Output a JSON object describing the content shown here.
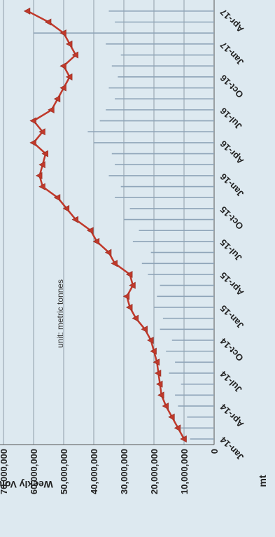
{
  "chart_data": {
    "type": "line",
    "rotation": "rotated 90 degrees counter-clockwise",
    "ylabel": "Weekly Volume",
    "unit_label": "mt",
    "annotation": "unit: metric tonnes",
    "ylim": [
      0,
      70000000
    ],
    "y_ticks": [
      "70,000,000",
      "60,000,000",
      "50,000,000",
      "40,000,000",
      "30,000,000",
      "20,000,000",
      "10,000,000",
      "0"
    ],
    "x_ticks": [
      "Jan-14",
      "Apr-14",
      "Jul-14",
      "Oct-14",
      "Jan-15",
      "Apr-15",
      "Jul-15",
      "Oct-15",
      "Jan-16",
      "Apr-16",
      "Jul-16",
      "Oct-16",
      "Jan-17",
      "Apr-17"
    ],
    "grid": true,
    "series": [
      {
        "style": "line with triangle markers",
        "color": "#c0392b",
        "x": [
          "Jan-14",
          "Feb-14",
          "Mar-14",
          "Apr-14",
          "May-14",
          "Jun-14",
          "Jul-14",
          "Aug-14",
          "Sep-14",
          "Oct-14",
          "Nov-14",
          "Dec-14",
          "Jan-15",
          "Feb-15",
          "Mar-15",
          "Apr-15",
          "May-15",
          "Jun-15",
          "Jul-15",
          "Aug-15",
          "Sep-15",
          "Oct-15",
          "Nov-15",
          "Dec-15",
          "Jan-16",
          "Feb-16",
          "Mar-16",
          "Apr-16",
          "May-16",
          "Jun-16",
          "Jul-16",
          "Aug-16",
          "Sep-16",
          "Oct-16",
          "Nov-16",
          "Dec-16",
          "Jan-17",
          "Feb-17",
          "Mar-17",
          "Apr-17"
        ],
        "values": [
          10000000,
          12000000,
          14000000,
          16000000,
          17500000,
          18000000,
          18500000,
          19000000,
          20000000,
          21000000,
          23000000,
          26000000,
          28000000,
          29000000,
          27000000,
          28000000,
          33000000,
          35000000,
          39000000,
          41000000,
          46000000,
          49000000,
          52000000,
          57000000,
          58000000,
          57000000,
          56000000,
          60000000,
          57000000,
          60000000,
          54000000,
          52000000,
          50000000,
          48000000,
          50000000,
          46000000,
          48000000,
          50000000,
          55000000,
          62000000
        ]
      },
      {
        "style": "thin vertical bars",
        "color": "#8ea4b8",
        "x": [
          "Jan-14",
          "Feb-14",
          "Mar-14",
          "Apr-14",
          "May-14",
          "Jun-14",
          "Jul-14",
          "Aug-14",
          "Sep-14",
          "Oct-14",
          "Nov-14",
          "Dec-14",
          "Jan-15",
          "Feb-15",
          "Mar-15",
          "Apr-15",
          "May-15",
          "Jun-15",
          "Jul-15",
          "Aug-15",
          "Sep-15",
          "Oct-15",
          "Nov-15",
          "Dec-15",
          "Jan-16",
          "Feb-16",
          "Mar-16",
          "Apr-16",
          "May-16",
          "Jun-16",
          "Jul-16",
          "Aug-16",
          "Sep-16",
          "Oct-16",
          "Nov-16",
          "Dec-16",
          "Jan-17",
          "Feb-17",
          "Mar-17",
          "Apr-17"
        ],
        "values": [
          8000000,
          11000000,
          9000000,
          12000000,
          13000000,
          11000000,
          15000000,
          13000000,
          16000000,
          14000000,
          18000000,
          17000000,
          20000000,
          19000000,
          18000000,
          22000000,
          24000000,
          21000000,
          27000000,
          25000000,
          30000000,
          28000000,
          33000000,
          31000000,
          35000000,
          33000000,
          34000000,
          40000000,
          42000000,
          38000000,
          36000000,
          33000000,
          35000000,
          32000000,
          34000000,
          31000000,
          36000000,
          60000000,
          33000000,
          35000000
        ]
      }
    ]
  }
}
